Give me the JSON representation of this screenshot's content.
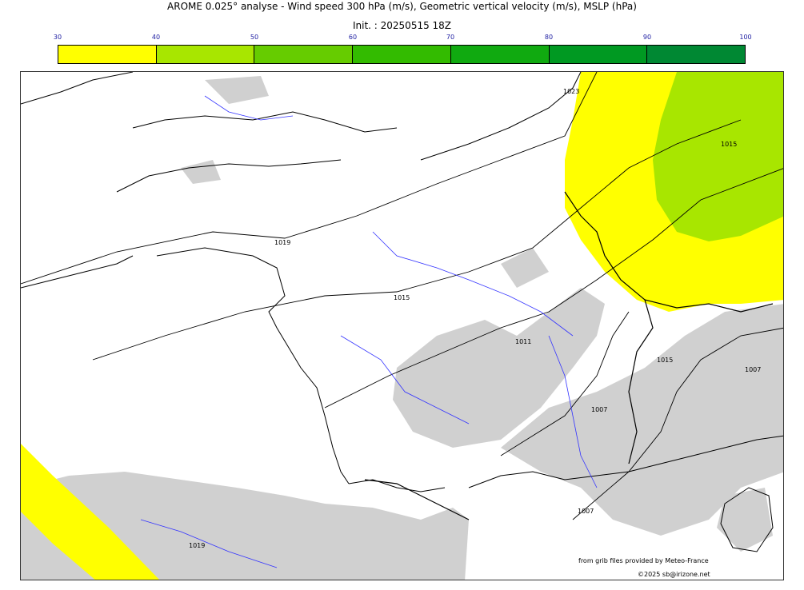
{
  "header": {
    "title": "AROME 0.025° analyse - Wind speed 300 hPa (m/s), Geometric vertical velocity (m/s), MSLP (hPa)",
    "subtitle": "Init. : 20250515 18Z"
  },
  "colorbar": {
    "ticks": [
      "30",
      "40",
      "50",
      "60",
      "70",
      "80",
      "90",
      "100"
    ],
    "colors": [
      "#ffff00",
      "#a8e600",
      "#66cc00",
      "#33bb00",
      "#10aa10",
      "#009922",
      "#008833",
      "#007744"
    ]
  },
  "map": {
    "wind_fill_colors": {
      "30-40": "#ffff00",
      "40-50": "#a8e600"
    },
    "relief_color": "#d0d0d0",
    "river_color": "#3333ff",
    "isobar_labels": [
      "1023",
      "1019",
      "1015",
      "1011",
      "1007",
      "1007",
      "1007",
      "1015",
      "1019",
      "1015"
    ]
  },
  "footer": {
    "credit_source": "from grib files provided by Meteo-France",
    "credit_copyright": "©2025 sb@irizone.net"
  }
}
